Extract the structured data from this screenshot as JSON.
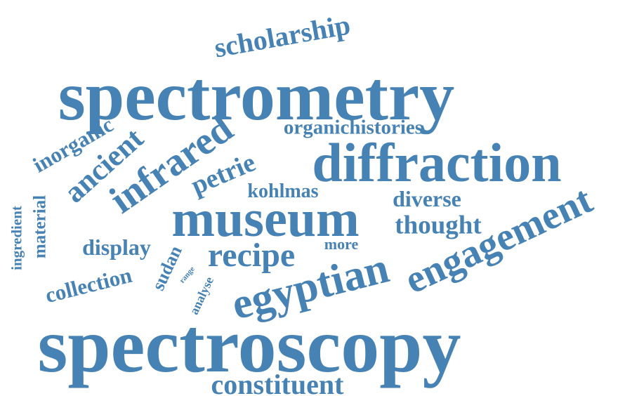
{
  "color": "#4682b4",
  "words": {
    "spectrometry": "spectrometry",
    "spectroscopy": "spectroscopy",
    "diffraction": "diffraction",
    "museum": "museum",
    "engagement": "engagement",
    "egyptian": "egyptian",
    "infrared": "infrared",
    "scholarship": "scholarship",
    "recipe": "recipe",
    "constituent": "constituent",
    "organichistories": "organichistories",
    "ancient": "ancient",
    "petrie": "petrie",
    "inorganic": "inorganic",
    "kohlmas": "kohlmas",
    "diverse": "diverse",
    "thought": "thought",
    "display": "display",
    "collection": "collection",
    "material": "material",
    "ingredient": "ingredient",
    "sudan": "sudan",
    "more": "more",
    "range": "range",
    "analyse": "analyse"
  }
}
